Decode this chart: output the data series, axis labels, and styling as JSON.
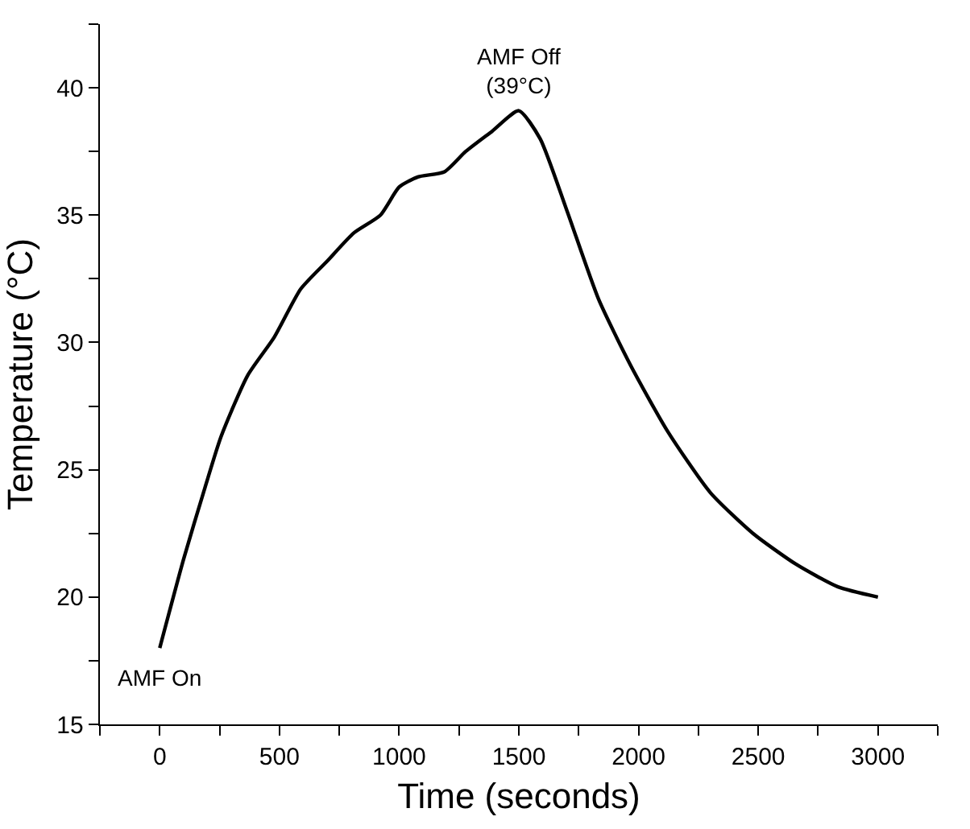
{
  "chart_data": {
    "type": "line",
    "xlabel": "Time (seconds)",
    "ylabel": "Temperature (°C)",
    "xlim": [
      -250,
      3250
    ],
    "ylim": [
      15,
      42.5
    ],
    "xticks": [
      {
        "value": -250,
        "label": null
      },
      0,
      {
        "value": 250,
        "label": null
      },
      500,
      {
        "value": 750,
        "label": null
      },
      1000,
      {
        "value": 1250,
        "label": null
      },
      1500,
      {
        "value": 1750,
        "label": null
      },
      2000,
      {
        "value": 2250,
        "label": null
      },
      2500,
      {
        "value": 2750,
        "label": null
      },
      3000,
      {
        "value": 3250,
        "label": null
      }
    ],
    "yticks": [
      15,
      {
        "value": 17.5,
        "label": null
      },
      20,
      {
        "value": 22.5,
        "label": null
      },
      25,
      {
        "value": 27.5,
        "label": null
      },
      30,
      {
        "value": 32.5,
        "label": null
      },
      35,
      {
        "value": 37.5,
        "label": null
      },
      40,
      {
        "value": 42.5,
        "label": null
      }
    ],
    "marker": "none",
    "line_style": "solid",
    "series": [
      {
        "color": "#000000",
        "x": [
          0,
          100,
          189,
          256,
          367,
          478,
          589,
          700,
          811,
          922,
          1000,
          1078,
          1189,
          1278,
          1389,
          1500,
          1589,
          1700,
          1833,
          1967,
          2122,
          2300,
          2478,
          2656,
          2833,
          3000
        ],
        "values": [
          18.0,
          21.5,
          24.3,
          26.3,
          28.7,
          30.2,
          32.1,
          33.2,
          34.3,
          35.0,
          36.1,
          36.5,
          36.7,
          37.5,
          38.3,
          39.1,
          38.0,
          35.2,
          31.7,
          29.1,
          26.5,
          24.1,
          22.5,
          21.3,
          20.4,
          20.0
        ]
      }
    ],
    "annotations": [
      {
        "text": "AMF On",
        "x": 0,
        "y": 18.0
      },
      {
        "text": "AMF Off\n(39°C)",
        "x": 1500,
        "y": 39.1
      }
    ]
  }
}
